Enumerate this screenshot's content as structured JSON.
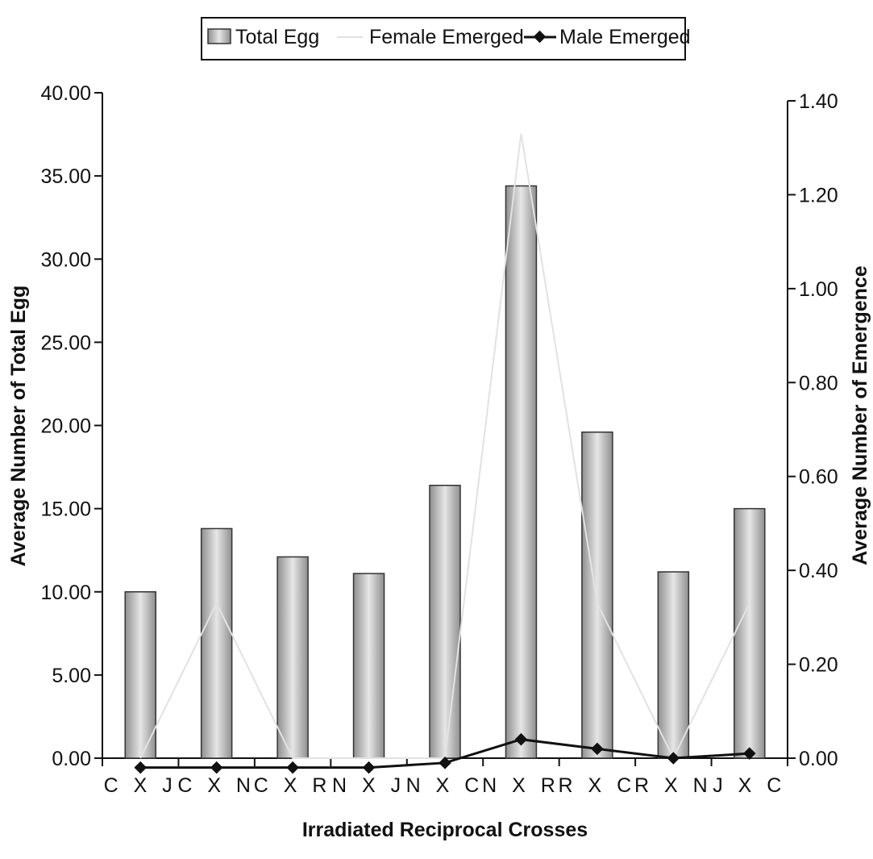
{
  "chart_data": {
    "type": "bar",
    "categories": [
      "C X J",
      "C X N",
      "C X R",
      "N X J",
      "N X C",
      "N X R",
      "R X C",
      "R X N",
      "J X C"
    ],
    "series": [
      {
        "name": "Total Egg",
        "type": "bar",
        "axis": "left",
        "color": "#bdbdbd",
        "values": [
          10.0,
          13.8,
          12.1,
          11.1,
          16.4,
          34.4,
          19.6,
          11.2,
          15.0
        ]
      },
      {
        "name": "Female Emerged",
        "type": "line",
        "axis": "right",
        "color": "#e2e2e2",
        "values": [
          0.0,
          0.33,
          0.0,
          0.0,
          0.0,
          1.33,
          0.33,
          0.0,
          0.33
        ]
      },
      {
        "name": "Male Emerged",
        "type": "line",
        "axis": "right",
        "color": "#111111",
        "values": [
          -0.02,
          -0.02,
          -0.02,
          -0.02,
          -0.01,
          0.04,
          0.02,
          0.0,
          0.01
        ]
      }
    ],
    "xlabel": "Irradiated Reciprocal Crosses",
    "ylabel": "Average Number of Total Egg",
    "y2label": "Average Number of Emergence",
    "ylim": [
      0,
      40
    ],
    "y2lim": [
      0,
      1.4
    ],
    "yticks": [
      "0.00",
      "5.00",
      "10.00",
      "15.00",
      "20.00",
      "25.00",
      "30.00",
      "35.00",
      "40.00"
    ],
    "y2ticks": [
      "0.00",
      "0.20",
      "0.40",
      "0.60",
      "0.80",
      "1.00",
      "1.20",
      "1.40"
    ],
    "legend_position": "top-center",
    "grid": false
  }
}
